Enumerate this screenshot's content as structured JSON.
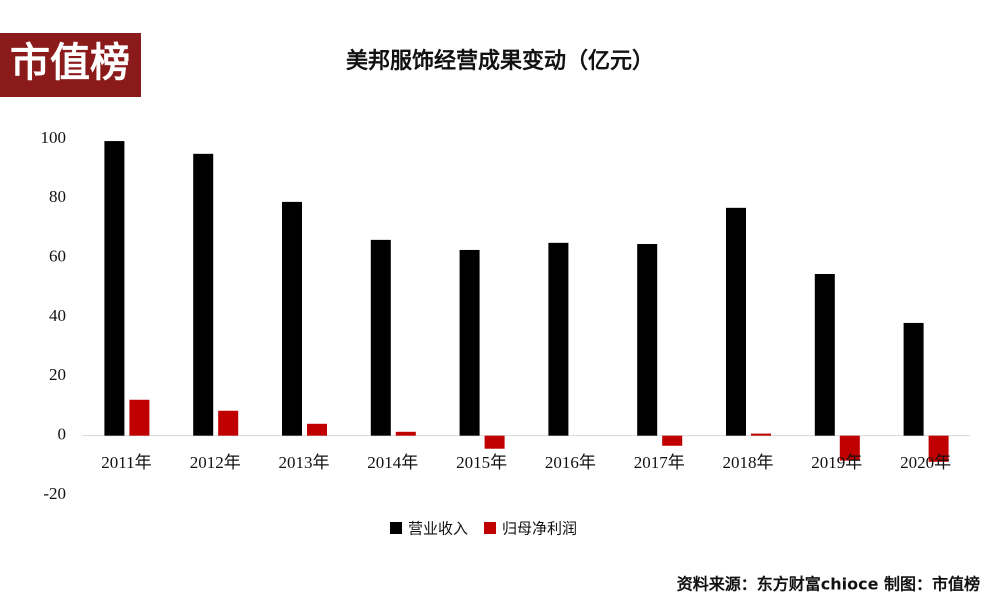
{
  "logo": "市值榜",
  "source_note": "资料来源：东方财富chioce   制图：市值榜",
  "chart_data": {
    "type": "bar",
    "title": "美邦服饰经营成果变动（亿元）",
    "categories": [
      "2011年",
      "2012年",
      "2013年",
      "2014年",
      "2015年",
      "2016年",
      "2017年",
      "2018年",
      "2019年",
      "2020年"
    ],
    "series": [
      {
        "name": "营业收入",
        "color": "#000000",
        "values": [
          99.3,
          95,
          78.8,
          66,
          62.6,
          65,
          64.6,
          76.8,
          54.5,
          38
        ]
      },
      {
        "name": "归母净利润",
        "color": "#c00000",
        "values": [
          12.1,
          8.4,
          4,
          1.3,
          -4.4,
          0,
          -3.4,
          0.7,
          -8.4,
          -8.8
        ]
      }
    ],
    "ylim": [
      -20,
      100
    ],
    "yticks": [
      -20,
      0,
      20,
      40,
      60,
      80,
      100
    ],
    "grid": false,
    "legend": "bottom"
  }
}
